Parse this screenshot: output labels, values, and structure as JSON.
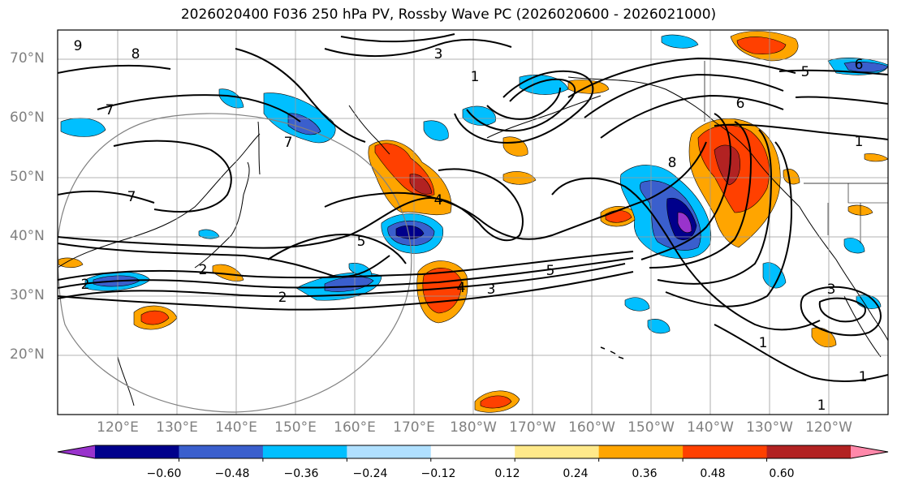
{
  "title": "2026020400 F036 250 hPa PV, Rossby Wave PC (2026020600 - 2026021000)",
  "lat_labels": [
    "70°N",
    "60°N",
    "50°N",
    "40°N",
    "30°N",
    "20°N"
  ],
  "lon_labels": [
    "120°E",
    "130°E",
    "140°E",
    "150°E",
    "160°E",
    "170°E",
    "180°W",
    "170°W",
    "160°W",
    "150°W",
    "140°W",
    "130°W",
    "120°W"
  ],
  "colorbar": {
    "colors": [
      "#9933cc",
      "#00008b",
      "#3a5fcd",
      "#00bfff",
      "#b0e0ff",
      "#ffffff",
      "#ffe98a",
      "#ffa500",
      "#ff4000",
      "#b22222",
      "#ff88aa"
    ],
    "tick_labels": [
      "−0.60",
      "−0.48",
      "−0.36",
      "−0.24",
      "−0.12",
      "0.12",
      "0.24",
      "0.36",
      "0.48",
      "0.60"
    ]
  },
  "contour_labels": [
    "2",
    "2",
    "2",
    "3",
    "4",
    "5",
    "5",
    "1",
    "1",
    "1",
    "1",
    "6",
    "7",
    "7",
    "7",
    "8",
    "8",
    "9",
    "3",
    "5",
    "6",
    "1",
    "3",
    "4"
  ]
}
